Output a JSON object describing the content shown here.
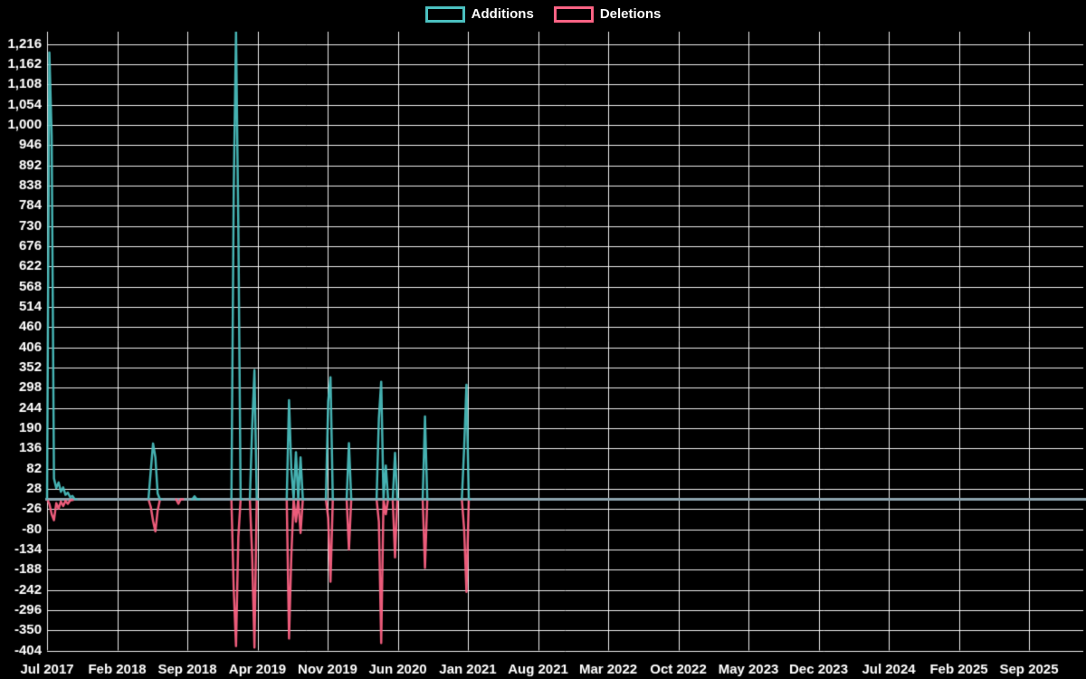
{
  "app": {
    "background_color": "#000000",
    "grid_color": "#ffffff",
    "text_color": "#ffffff",
    "baseline_color": "#8ba3ad"
  },
  "chart_data": {
    "type": "line",
    "title": "",
    "legend_position": "top-center",
    "grid": true,
    "x_axis": {
      "label": "",
      "tick_labels": [
        "Jul 2017",
        "Feb 2018",
        "Sep 2018",
        "Apr 2019",
        "Nov 2019",
        "Jun 2020",
        "Jan 2021",
        "Aug 2021",
        "Mar 2022",
        "Oct 2022",
        "May 2023",
        "Dec 2023",
        "Jul 2024",
        "Feb 2025",
        "Sep 2025"
      ],
      "tick_interval_months": 7,
      "unit": "weeks since Jul 2017"
    },
    "y_axis": {
      "label": "",
      "min": -404,
      "max": 1216,
      "step": 54,
      "tick_labels": [
        "-404",
        "-350",
        "-296",
        "-242",
        "-188",
        "-134",
        "-80",
        "-26",
        "28",
        "82",
        "136",
        "190",
        "244",
        "298",
        "352",
        "406",
        "460",
        "514",
        "568",
        "622",
        "676",
        "730",
        "784",
        "838",
        "892",
        "946",
        "1,000",
        "1,054",
        "1,108",
        "1,162",
        "1,216"
      ]
    },
    "weeks_total": 452,
    "baseline_value": 0,
    "series": [
      {
        "name": "Additions",
        "color": "#4bc0c0",
        "events": {
          "1": 1193,
          "2": 970,
          "3": 56,
          "4": 30,
          "5": 45,
          "6": 20,
          "7": 32,
          "8": 12,
          "9": 18,
          "10": 6,
          "11": 9,
          "45": 76,
          "46": 149,
          "47": 112,
          "48": 15,
          "64": 8,
          "81": 820,
          "82": 1250,
          "83": 730,
          "89": 193,
          "90": 345,
          "105": 265,
          "106": 80,
          "108": 126,
          "110": 112,
          "122": 262,
          "123": 326,
          "131": 150,
          "144": 217,
          "145": 314,
          "147": 90,
          "151": 124,
          "164": 221,
          "181": 137,
          "182": 306
        }
      },
      {
        "name": "Deletions",
        "color": "#ff6384",
        "events": {
          "1": -12,
          "2": -40,
          "3": -56,
          "4": -10,
          "5": -25,
          "6": -6,
          "7": -18,
          "8": -4,
          "9": -12,
          "10": -3,
          "11": -2,
          "45": -20,
          "46": -58,
          "47": -86,
          "48": -30,
          "57": -12,
          "81": -240,
          "82": -392,
          "83": -100,
          "89": -150,
          "90": -396,
          "105": -372,
          "106": -150,
          "108": -60,
          "110": -90,
          "122": -50,
          "123": -220,
          "131": -134,
          "144": -60,
          "145": -384,
          "147": -40,
          "151": -155,
          "164": -183,
          "181": -80,
          "182": -247
        }
      }
    ]
  }
}
